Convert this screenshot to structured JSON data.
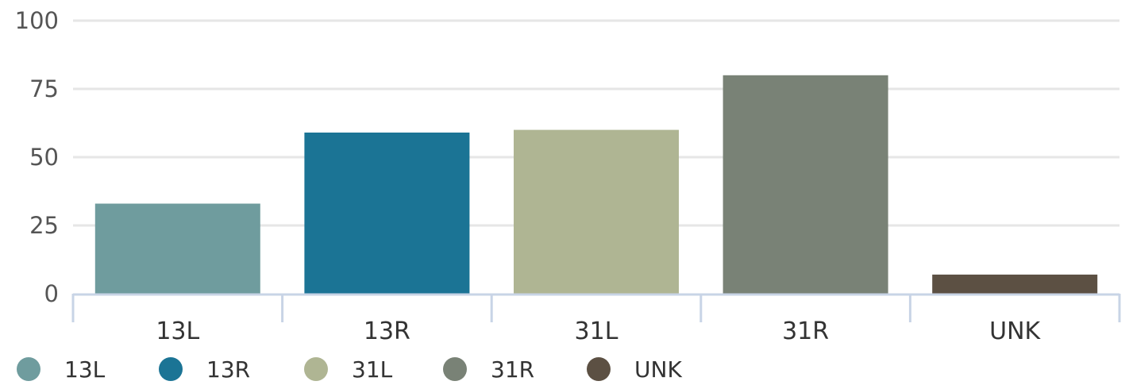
{
  "chart_data": {
    "type": "bar",
    "categories": [
      "13L",
      "13R",
      "31L",
      "31R",
      "UNK"
    ],
    "values": [
      33,
      59,
      60,
      80,
      7
    ],
    "colors": [
      "#6f9c9e",
      "#1b7495",
      "#afb593",
      "#798276",
      "#5c5043"
    ],
    "ylim": [
      0,
      100
    ],
    "yticks": [
      0,
      25,
      50,
      75,
      100
    ],
    "grid": true,
    "legend": {
      "position": "bottom-left",
      "items": [
        "13L",
        "13R",
        "31L",
        "31R",
        "UNK"
      ]
    },
    "title": "",
    "xlabel": "",
    "ylabel": ""
  }
}
